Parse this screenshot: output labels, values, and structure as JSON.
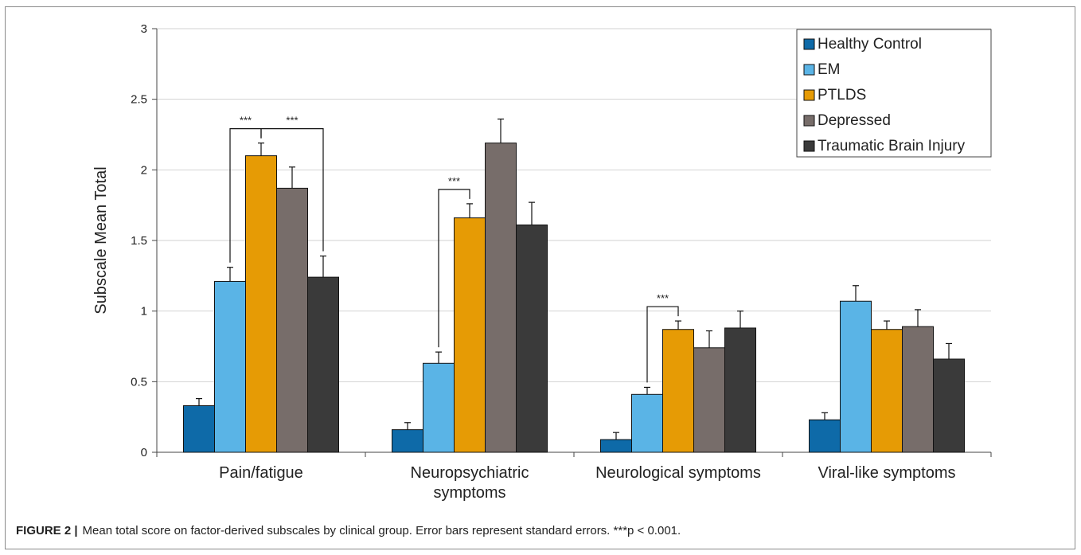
{
  "chart_data": {
    "type": "bar",
    "title": "",
    "xlabel": "",
    "ylabel": "Subscale Mean Total",
    "ylim": [
      0,
      3
    ],
    "yticks": [
      "0",
      "0.5",
      "1",
      "1.5",
      "2",
      "2.5",
      "3"
    ],
    "grid": true,
    "legend_position": "top-right",
    "categories": [
      [
        "Pain/fatigue"
      ],
      [
        "Neuropsychiatric",
        "symptoms"
      ],
      [
        "Neurological symptoms"
      ],
      [
        "Viral-like symptoms"
      ]
    ],
    "series": [
      {
        "name": "Healthy Control",
        "color": "#0e6aa8",
        "values": [
          0.33,
          0.16,
          0.09,
          0.23
        ],
        "errors": [
          0.05,
          0.05,
          0.05,
          0.05
        ]
      },
      {
        "name": "EM",
        "color": "#5ab4e6",
        "values": [
          1.21,
          0.63,
          0.41,
          1.07
        ],
        "errors": [
          0.1,
          0.08,
          0.05,
          0.11
        ]
      },
      {
        "name": "PTLDS",
        "color": "#e69b05",
        "values": [
          2.1,
          1.66,
          0.87,
          0.87
        ],
        "errors": [
          0.09,
          0.1,
          0.06,
          0.06
        ]
      },
      {
        "name": "Depressed",
        "color": "#776d6a",
        "values": [
          1.87,
          2.19,
          0.74,
          0.89
        ],
        "errors": [
          0.15,
          0.17,
          0.12,
          0.12
        ]
      },
      {
        "name": "Traumatic Brain Injury",
        "color": "#3a3a3a",
        "values": [
          1.24,
          1.61,
          0.88,
          0.66
        ],
        "errors": [
          0.15,
          0.16,
          0.12,
          0.11
        ]
      }
    ],
    "significance": [
      {
        "category": 0,
        "from_series": 1,
        "to_series": 2,
        "label": "***"
      },
      {
        "category": 0,
        "from_series": 2,
        "to_series": 4,
        "label": "***"
      },
      {
        "category": 1,
        "from_series": 1,
        "to_series": 2,
        "label": "***"
      },
      {
        "category": 2,
        "from_series": 1,
        "to_series": 2,
        "label": "***"
      }
    ]
  },
  "caption": {
    "label": "FIGURE 2 |",
    "text": "Mean total score on factor-derived subscales by clinical group. Error bars represent standard errors. ***p < 0.001."
  }
}
